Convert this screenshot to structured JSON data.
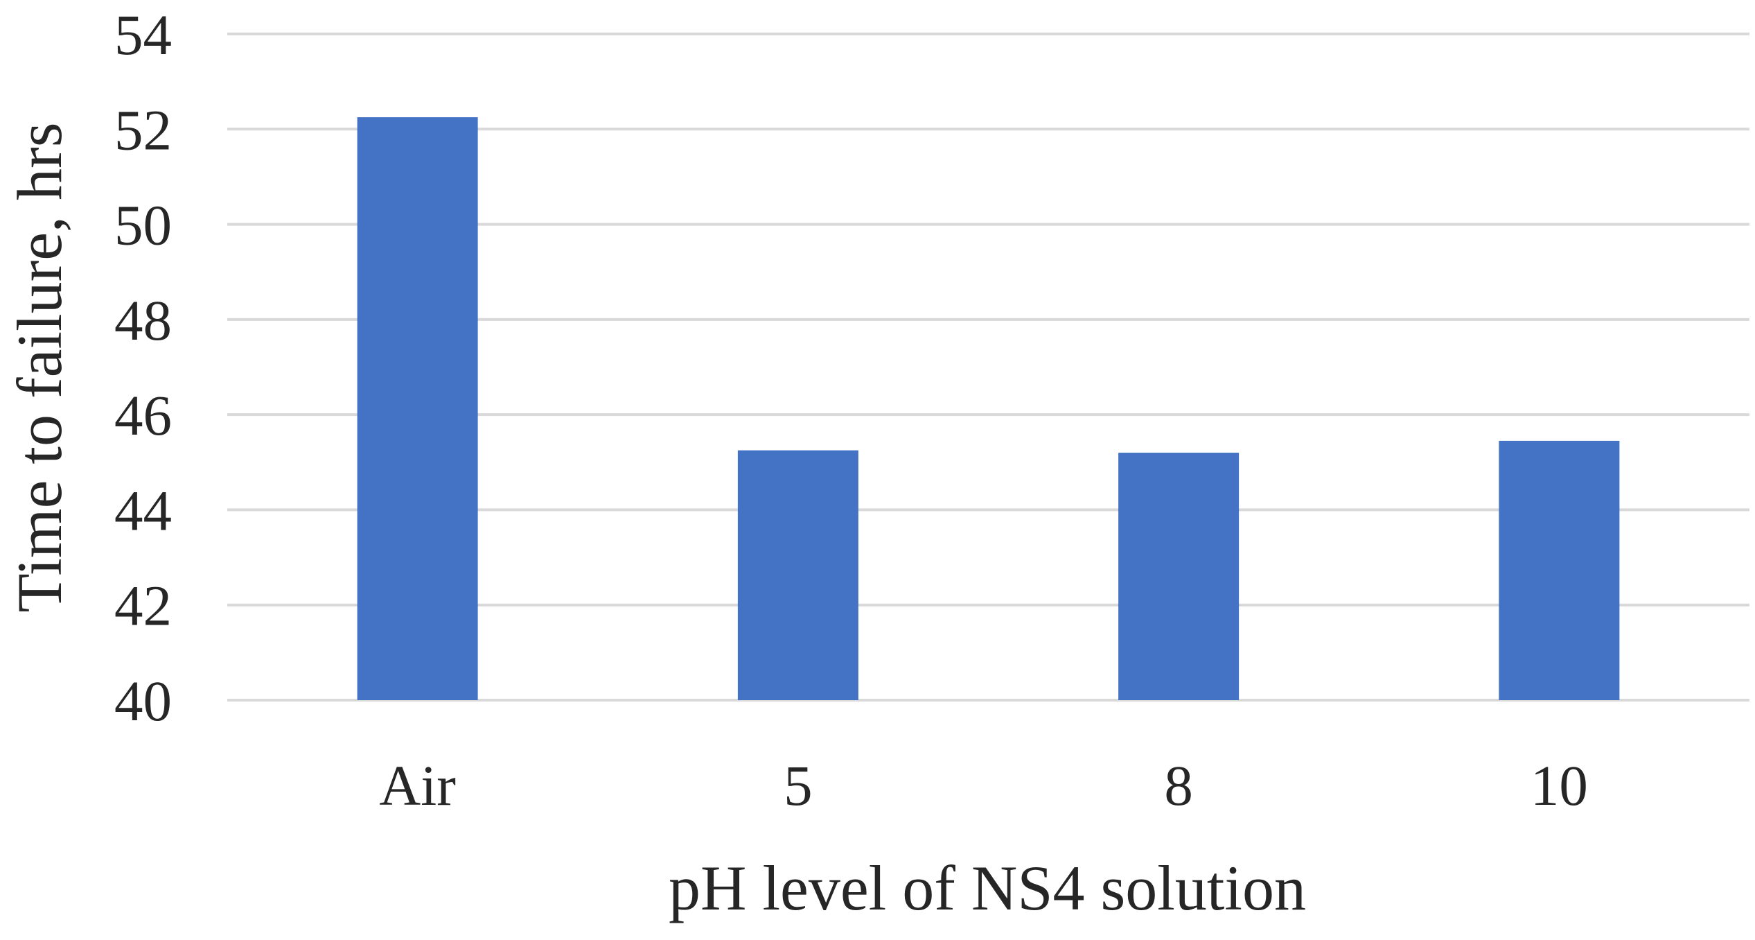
{
  "chart_data": {
    "type": "bar",
    "title": "",
    "xlabel": "pH level of NS4 solution",
    "ylabel": "Time to failure, hrs",
    "categories": [
      "Air",
      "5",
      "8",
      "10"
    ],
    "values": [
      52.25,
      45.25,
      45.2,
      45.45
    ],
    "ylim": [
      40,
      54
    ],
    "yticks": [
      40,
      42,
      44,
      46,
      48,
      50,
      52,
      54
    ],
    "grid": true,
    "legend": "none",
    "bar_color": "#4472c4"
  }
}
